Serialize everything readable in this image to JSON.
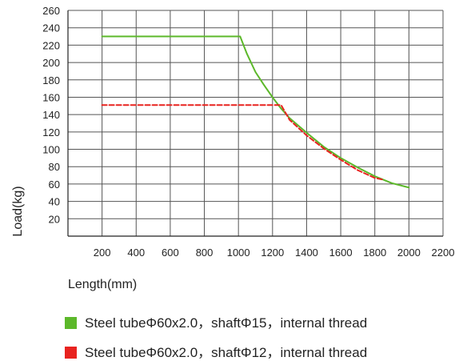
{
  "chart_data": {
    "type": "line",
    "xlabel": "Length(mm)",
    "ylabel": "Load(kg)",
    "xlim": [
      0,
      2200
    ],
    "ylim": [
      0,
      260
    ],
    "x_ticks": [
      200,
      400,
      600,
      800,
      1000,
      1200,
      1400,
      1600,
      1800,
      2000,
      2200
    ],
    "y_ticks": [
      20,
      40,
      60,
      80,
      100,
      120,
      140,
      160,
      180,
      200,
      220,
      240,
      260
    ],
    "grid": true,
    "legend_position": "bottom",
    "series": [
      {
        "name": "Steel tubeΦ60x2.0，shaftΦ15，internal thread",
        "color": "#5cb82a",
        "style": "solid",
        "points": [
          [
            200,
            230
          ],
          [
            1010,
            230
          ],
          [
            1050,
            210
          ],
          [
            1100,
            189
          ],
          [
            1150,
            174
          ],
          [
            1200,
            160
          ],
          [
            1250,
            147
          ],
          [
            1300,
            136
          ],
          [
            1400,
            119
          ],
          [
            1500,
            103
          ],
          [
            1600,
            90
          ],
          [
            1700,
            79
          ],
          [
            1800,
            69
          ],
          [
            1900,
            61
          ],
          [
            2000,
            56
          ]
        ]
      },
      {
        "name": "Steel tubeΦ60x2.0，shaftΦ12，internal thread",
        "color": "#e8231f",
        "style": "dashed",
        "points": [
          [
            200,
            151
          ],
          [
            1250,
            151
          ],
          [
            1300,
            134
          ],
          [
            1400,
            116
          ],
          [
            1500,
            101
          ],
          [
            1600,
            88
          ],
          [
            1700,
            76
          ],
          [
            1800,
            67
          ],
          [
            1850,
            65
          ]
        ]
      }
    ]
  }
}
